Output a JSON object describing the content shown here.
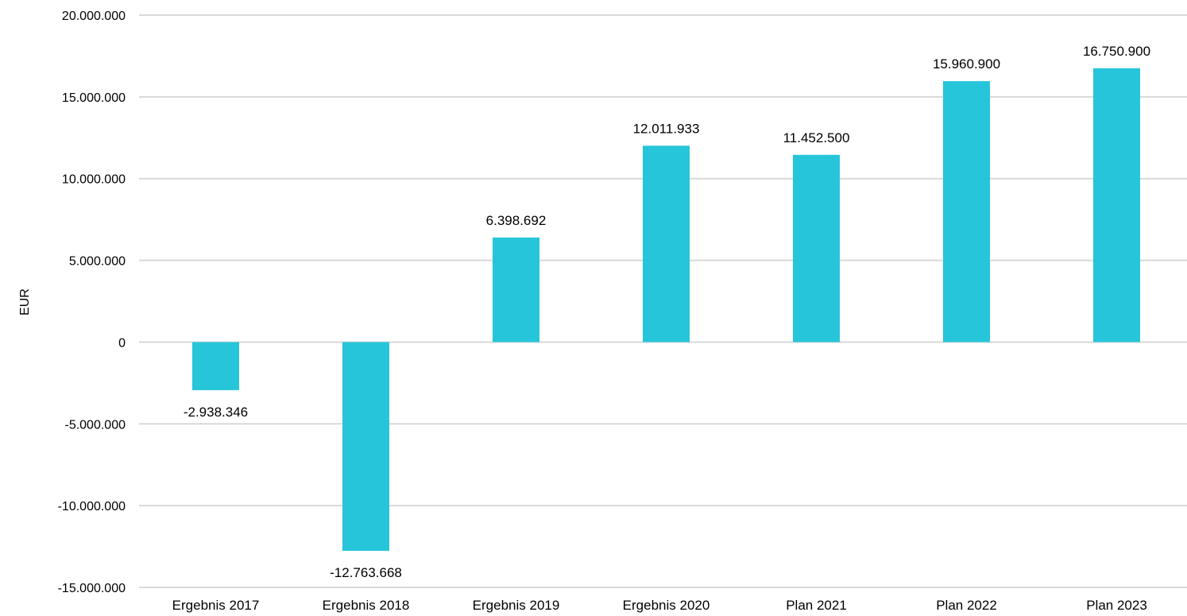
{
  "chart_data": {
    "type": "bar",
    "categories": [
      "Ergebnis 2017",
      "Ergebnis 2018",
      "Ergebnis 2019",
      "Ergebnis 2020",
      "Plan 2021",
      "Plan 2022",
      "Plan 2023"
    ],
    "values": [
      -2938346,
      -12763668,
      6398692,
      12011933,
      11452500,
      15960900,
      16750900
    ],
    "value_labels": [
      "-2.938.346",
      "-12.763.668",
      "6.398.692",
      "12.011.933",
      "11.452.500",
      "15.960.900",
      "16.750.900"
    ],
    "title": "",
    "xlabel": "",
    "ylabel": "EUR",
    "ylim": [
      -15000000,
      20000000
    ],
    "y_ticks": [
      20000000,
      15000000,
      10000000,
      5000000,
      0,
      -5000000,
      -10000000,
      -15000000
    ],
    "y_tick_labels": [
      "20.000.000",
      "15.000.000",
      "10.000.000",
      "5.000.000",
      "0",
      "-5.000.000",
      "-10.000.000",
      "-15.000.000"
    ],
    "grid": true,
    "legend": "none",
    "bar_color": "#26c5d9",
    "grid_color": "#d9d9d9"
  }
}
